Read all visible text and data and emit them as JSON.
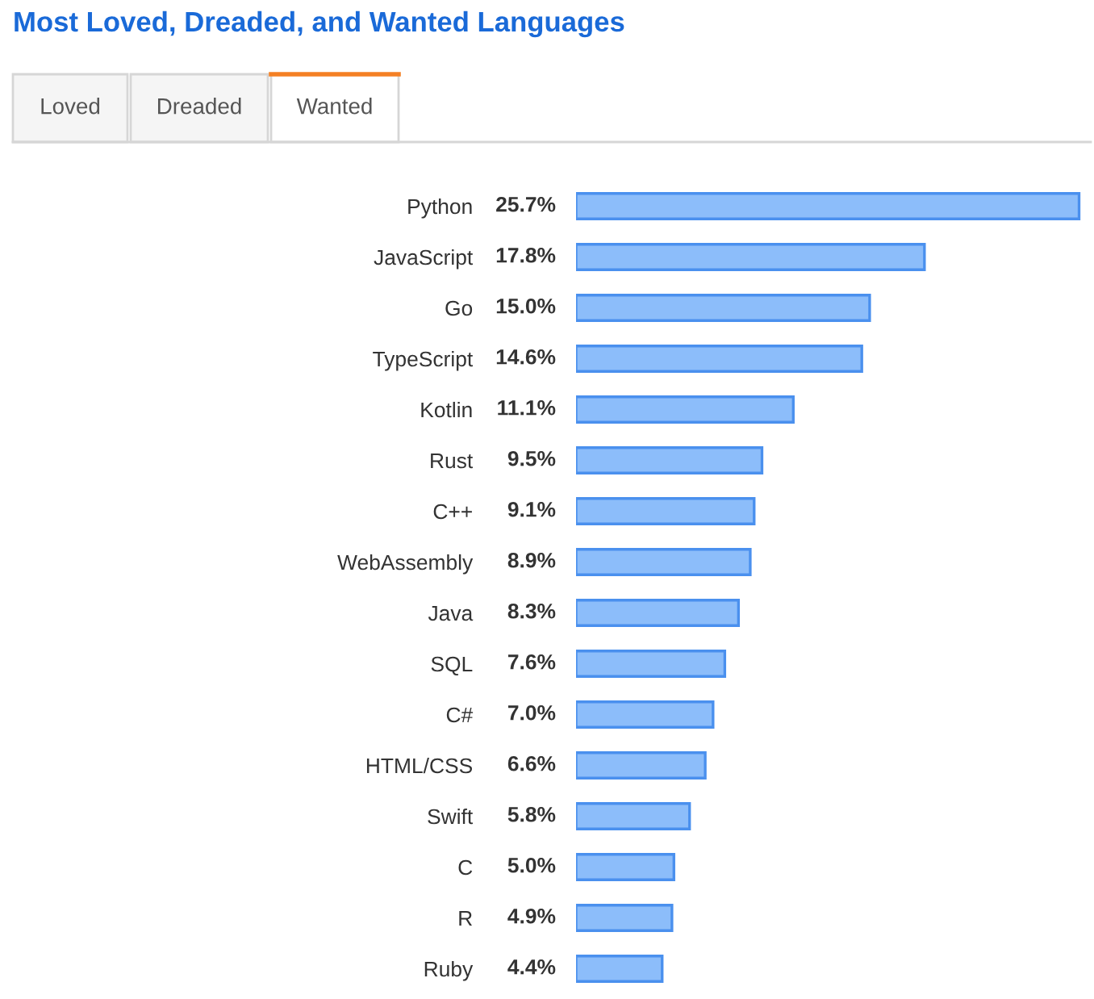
{
  "chart_data": {
    "type": "bar",
    "orientation": "horizontal",
    "title": "Most Loved, Dreaded, and Wanted Languages",
    "annotations": [
      "Loved",
      "Dreaded",
      "Wanted"
    ],
    "categories": [
      "Python",
      "JavaScript",
      "Go",
      "TypeScript",
      "Kotlin",
      "Rust",
      "C++",
      "WebAssembly",
      "Java",
      "SQL",
      "C#",
      "HTML/CSS",
      "Swift",
      "C",
      "R",
      "Ruby"
    ],
    "values": [
      25.7,
      17.8,
      15.0,
      14.6,
      11.1,
      9.5,
      9.1,
      8.9,
      8.3,
      7.6,
      7.0,
      6.6,
      5.8,
      5.0,
      4.9,
      4.4
    ],
    "value_labels": [
      "25.7%",
      "17.8%",
      "15.0%",
      "14.6%",
      "11.1%",
      "9.5%",
      "9.1%",
      "8.9%",
      "8.3%",
      "7.6%",
      "7.0%",
      "6.6%",
      "5.8%",
      "5.0%",
      "4.9%",
      "4.4%"
    ],
    "color": "#8cbdfa",
    "grid": false,
    "legend": false
  }
}
